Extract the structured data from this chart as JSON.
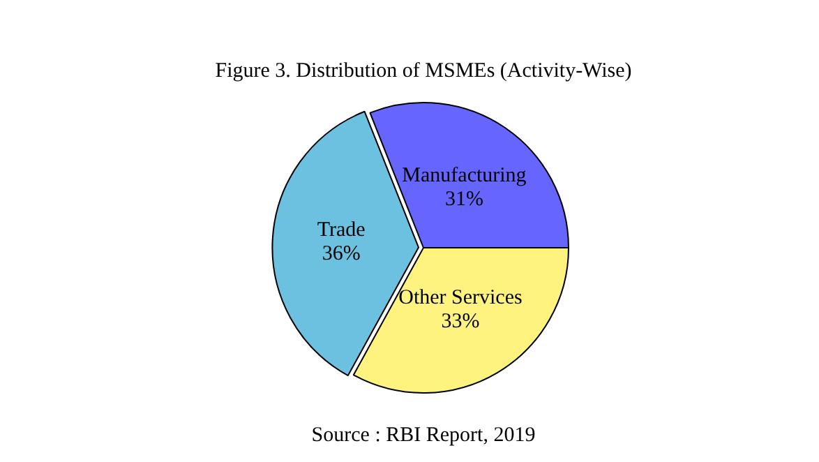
{
  "chart_data": {
    "type": "pie",
    "title": "Figure 3. Distribution of MSMEs (Activity-Wise)",
    "categories": [
      "Other Services",
      "Trade",
      "Manufacturing"
    ],
    "values": [
      33,
      36,
      31
    ],
    "value_labels": [
      "33%",
      "36%",
      "31%"
    ],
    "colors": [
      "#fff380",
      "#6cc0e0",
      "#6666ff"
    ],
    "legend": false,
    "annotations": [
      "Source : RBI Report, 2019"
    ]
  }
}
